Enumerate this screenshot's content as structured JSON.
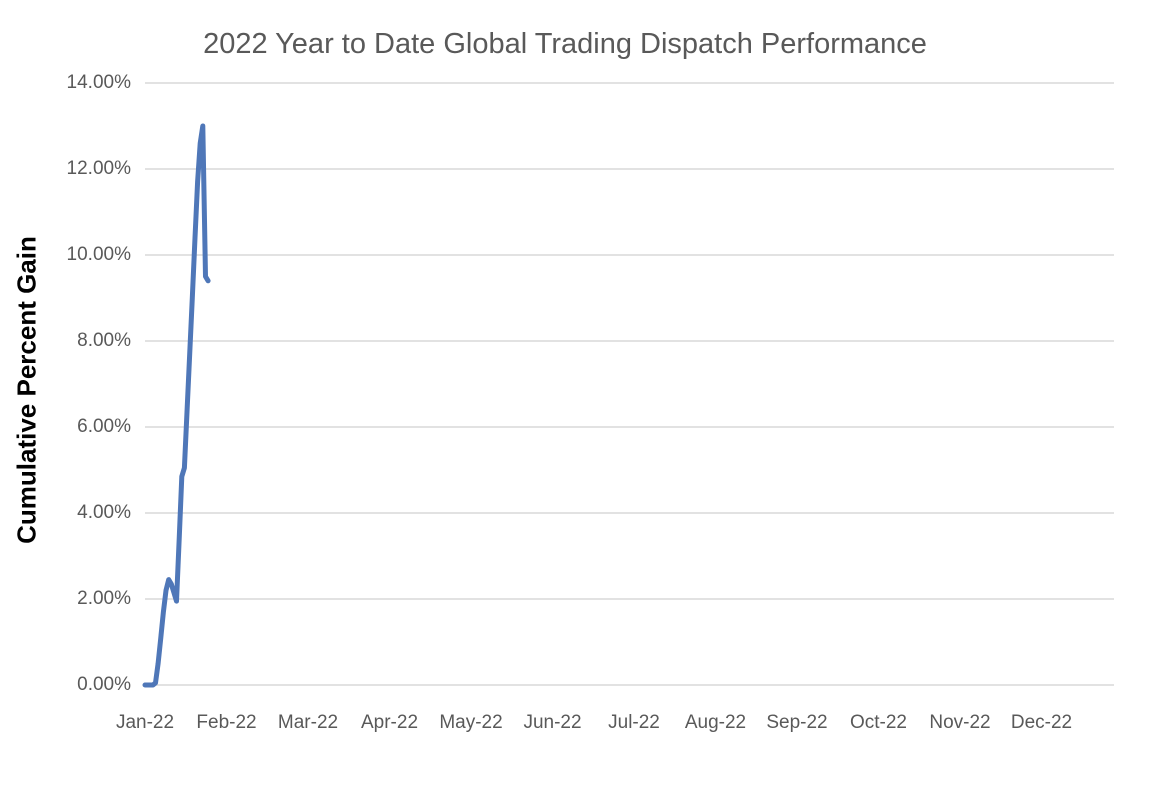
{
  "colors": {
    "background": "#ffffff",
    "title_text": "#595959",
    "axis_tick_text": "#595959",
    "y_axis_title_text": "#000000",
    "gridline": "#d9d9d9",
    "series_line": "#4f77b8"
  },
  "chart_data": {
    "type": "line",
    "title": "2022 Year to Date Global Trading Dispatch Performance",
    "xlabel": "",
    "ylabel": "Cumulative Percent Gain",
    "x_tick_labels": [
      "Jan-22",
      "Feb-22",
      "Mar-22",
      "Apr-22",
      "May-22",
      "Jun-22",
      "Jul-22",
      "Aug-22",
      "Sep-22",
      "Oct-22",
      "Nov-22",
      "Dec-22"
    ],
    "y_tick_labels": [
      "0.00%",
      "2.00%",
      "4.00%",
      "6.00%",
      "8.00%",
      "10.00%",
      "12.00%",
      "14.00%"
    ],
    "ylim": [
      0,
      14
    ],
    "y_tick_step": 2,
    "y_unit": "percent",
    "x_axis_range": "Jan-2022 to Dec-2022 (data present only for early January)",
    "grid": "horizontal",
    "legend": "none",
    "series": [
      {
        "name": "Cumulative Percent Gain",
        "color": "#4f77b8",
        "x_unit": "day of January 2022",
        "days": [
          1,
          2,
          3,
          4,
          5,
          6,
          7,
          8,
          9,
          10,
          11,
          12,
          13,
          14,
          15,
          16,
          17,
          18,
          19,
          20,
          21,
          22,
          23,
          24,
          25
        ],
        "values": [
          0,
          0,
          0,
          0,
          0.05,
          0.5,
          1.1,
          1.7,
          2.2,
          2.45,
          2.35,
          2.15,
          1.95,
          3.4,
          4.85,
          5.05,
          6.4,
          7.7,
          9.0,
          10.4,
          11.7,
          12.6,
          13.0,
          9.5,
          9.4
        ]
      }
    ]
  }
}
